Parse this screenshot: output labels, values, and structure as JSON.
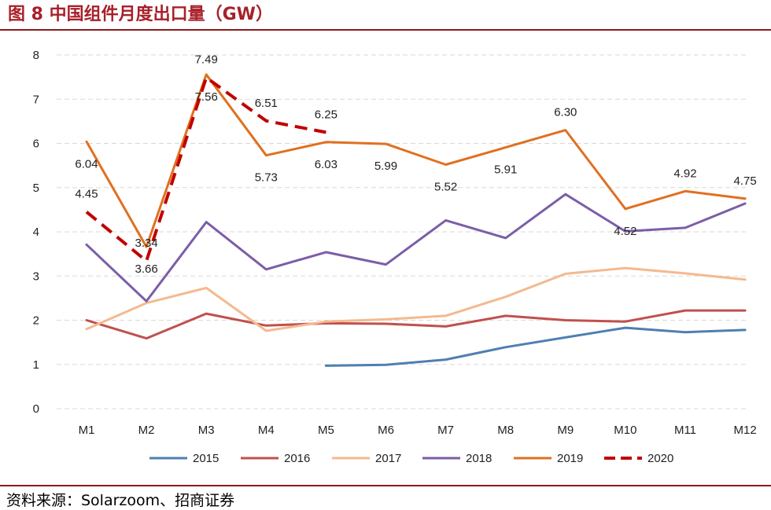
{
  "header": {
    "title": "图 8 中国组件月度出口量（GW）"
  },
  "footer": {
    "source": "资料来源：Solarzoom、招商证券"
  },
  "colors": {
    "title": "#a8202a",
    "rule": "#8b1a1a",
    "grid": "#d9d9d9"
  },
  "chart_data": {
    "type": "line",
    "title": "图 8 中国组件月度出口量（GW）",
    "xlabel": "",
    "ylabel": "",
    "ylim": [
      0,
      8
    ],
    "yticks": [
      0,
      1,
      2,
      3,
      4,
      5,
      6,
      7,
      8
    ],
    "grid": true,
    "legend_position": "bottom",
    "categories": [
      "M1",
      "M2",
      "M3",
      "M4",
      "M5",
      "M6",
      "M7",
      "M8",
      "M9",
      "M10",
      "M11",
      "M12"
    ],
    "series": [
      {
        "name": "2015",
        "color": "#4e7fb3",
        "dashed": false,
        "values": [
          null,
          null,
          null,
          null,
          0.97,
          0.99,
          1.11,
          1.39,
          1.61,
          1.83,
          1.73,
          1.78
        ],
        "labels": []
      },
      {
        "name": "2016",
        "color": "#c0504d",
        "dashed": false,
        "values": [
          2.0,
          1.59,
          2.15,
          1.88,
          1.93,
          1.92,
          1.86,
          2.1,
          2.0,
          1.97,
          2.22,
          2.22
        ],
        "labels": []
      },
      {
        "name": "2017",
        "color": "#f4b98f",
        "dashed": false,
        "values": [
          1.8,
          2.39,
          2.73,
          1.76,
          1.97,
          2.02,
          2.1,
          2.53,
          3.05,
          3.18,
          3.06,
          2.92
        ],
        "labels": []
      },
      {
        "name": "2018",
        "color": "#7b5ea7",
        "dashed": false,
        "values": [
          3.71,
          2.43,
          4.22,
          3.15,
          3.54,
          3.26,
          4.26,
          3.86,
          4.85,
          4.01,
          4.09,
          4.64
        ],
        "labels": []
      },
      {
        "name": "2019",
        "color": "#e07020",
        "dashed": false,
        "values": [
          6.04,
          3.66,
          7.56,
          5.73,
          6.03,
          5.99,
          5.52,
          5.91,
          6.3,
          4.52,
          4.92,
          4.75
        ],
        "labels": [
          {
            "i": 0,
            "text": "6.04",
            "pos": "below"
          },
          {
            "i": 1,
            "text": "3.66",
            "pos": "below"
          },
          {
            "i": 2,
            "text": "7.56",
            "pos": "below"
          },
          {
            "i": 3,
            "text": "5.73",
            "pos": "below"
          },
          {
            "i": 4,
            "text": "6.03",
            "pos": "below"
          },
          {
            "i": 5,
            "text": "5.99",
            "pos": "below"
          },
          {
            "i": 6,
            "text": "5.52",
            "pos": "below"
          },
          {
            "i": 7,
            "text": "5.91",
            "pos": "below"
          },
          {
            "i": 8,
            "text": "6.30",
            "pos": "above"
          },
          {
            "i": 9,
            "text": "4.52",
            "pos": "below"
          },
          {
            "i": 10,
            "text": "4.92",
            "pos": "above"
          },
          {
            "i": 11,
            "text": "4.75",
            "pos": "above"
          }
        ]
      },
      {
        "name": "2020",
        "color": "#c00000",
        "dashed": true,
        "values": [
          4.45,
          3.34,
          7.49,
          6.51,
          6.25,
          null,
          null,
          null,
          null,
          null,
          null,
          null
        ],
        "labels": [
          {
            "i": 0,
            "text": "4.45",
            "pos": "above"
          },
          {
            "i": 1,
            "text": "3.34",
            "pos": "above"
          },
          {
            "i": 2,
            "text": "7.49",
            "pos": "above"
          },
          {
            "i": 3,
            "text": "6.51",
            "pos": "above"
          },
          {
            "i": 4,
            "text": "6.25",
            "pos": "above"
          }
        ]
      }
    ]
  }
}
